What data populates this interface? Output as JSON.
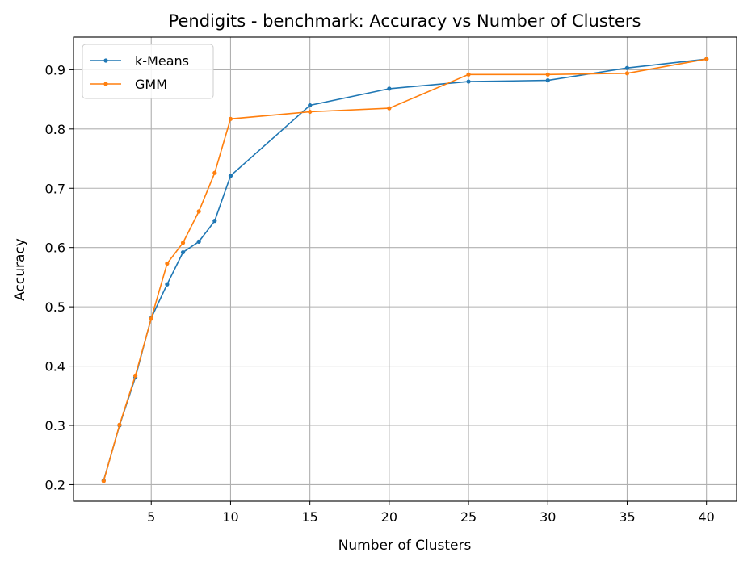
{
  "chart_data": {
    "type": "line",
    "title": "Pendigits - benchmark: Accuracy vs Number of Clusters",
    "xlabel": "Number of Clusters",
    "ylabel": "Accuracy",
    "x": [
      2,
      3,
      4,
      5,
      6,
      7,
      8,
      9,
      10,
      15,
      20,
      25,
      30,
      35,
      40
    ],
    "xlim": [
      0.1,
      41.9
    ],
    "ylim": [
      0.172,
      0.955
    ],
    "xticks": [
      5,
      10,
      15,
      20,
      25,
      30,
      35,
      40
    ],
    "yticks": [
      0.2,
      0.3,
      0.4,
      0.5,
      0.6,
      0.7,
      0.8,
      0.9
    ],
    "grid": true,
    "legend_position": "top-left",
    "series": [
      {
        "name": "k-Means",
        "color": "#1f77b4",
        "values": [
          0.207,
          0.3,
          0.381,
          0.481,
          0.538,
          0.592,
          0.61,
          0.645,
          0.721,
          0.84,
          0.868,
          0.88,
          0.882,
          0.903,
          0.918
        ]
      },
      {
        "name": "GMM",
        "color": "#ff7f0e",
        "values": [
          0.206,
          0.301,
          0.384,
          0.48,
          0.573,
          0.608,
          0.661,
          0.726,
          0.817,
          0.829,
          0.835,
          0.892,
          0.892,
          0.894,
          0.918
        ]
      }
    ]
  }
}
